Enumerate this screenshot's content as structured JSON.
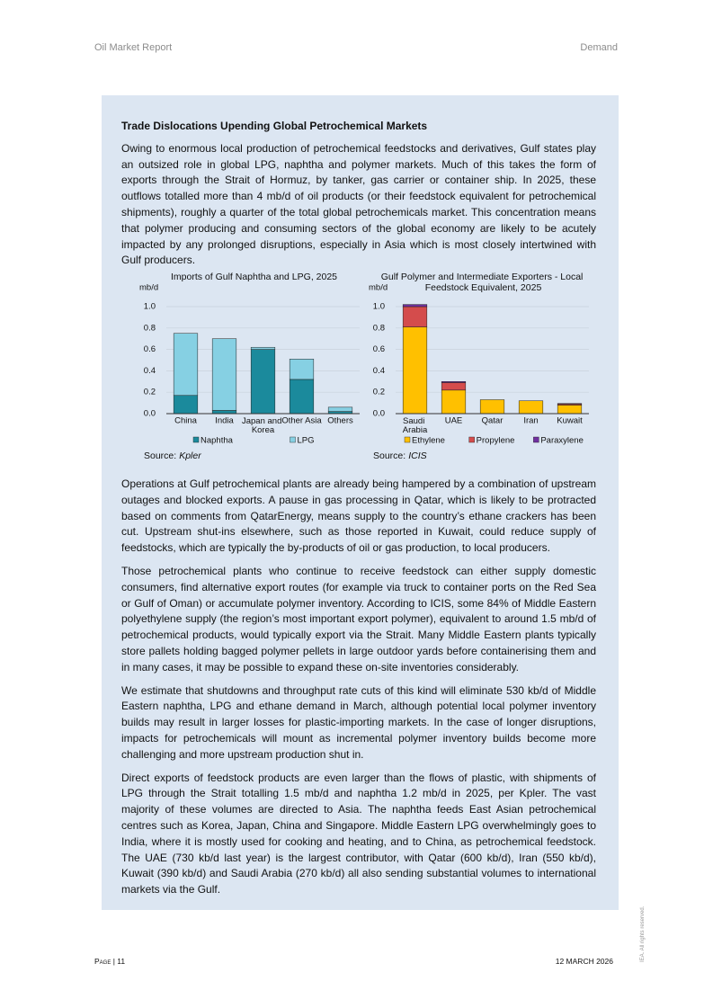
{
  "header": {
    "left": "Oil Market Report",
    "right": "Demand"
  },
  "box": {
    "title": "Trade Dislocations Upending Global Petrochemical Markets",
    "intro": "Owing to enormous local production of petrochemical feedstocks and derivatives, Gulf states play an outsized role in global LPG, naphtha and polymer markets. Much of this takes the form of exports through the Strait of Hormuz, by tanker, gas carrier or container ship. In 2025, these outflows totalled more than 4 mb/d of oil products (or their feedstock equivalent for petrochemical shipments), roughly a quarter of the total global petrochemicals market. This concentration means that polymer producing and consuming sectors of the global economy are likely to be acutely impacted by any prolonged disruptions, especially in Asia which is most closely intertwined with Gulf producers.",
    "paragraphs": [
      "Operations at Gulf petrochemical plants are already being hampered by a combination of upstream outages and blocked exports. A pause in gas processing in Qatar, which is likely to be protracted based on comments from QatarEnergy, means supply to the country’s ethane crackers has been cut. Upstream shut-ins elsewhere, such as those reported in Kuwait, could reduce supply of feedstocks, which are typically the by-products of oil or gas production, to local producers.",
      "Those petrochemical plants who continue to receive feedstock can either supply domestic consumers, find alternative export routes (for example via truck to container ports on the Red Sea or Gulf of Oman) or accumulate polymer inventory. According to ICIS, some 84% of Middle Eastern polyethylene supply (the region’s most important export polymer), equivalent to around 1.5 mb/d of petrochemical products, would typically export via the Strait. Many Middle Eastern plants typically store pallets holding bagged polymer pellets in large outdoor yards before containerising them and in many cases, it may be possible to expand these on-site inventories considerably.",
      "We estimate that shutdowns and throughput rate cuts of this kind will eliminate 530 kb/d of Middle Eastern naphtha, LPG and ethane demand in March, although potential local polymer inventory builds may result in larger losses for plastic-importing markets. In the case of longer disruptions, impacts for petrochemicals will mount as incremental polymer inventory builds become more challenging and more upstream production shut in.",
      "Direct exports of feedstock products are even larger than the flows of plastic, with shipments of LPG through the Strait totalling 1.5 mb/d and naphtha 1.2 mb/d in 2025, per Kpler. The vast majority of these volumes are directed to Asia. The naphtha feeds East Asian petrochemical centres such as Korea, Japan, China and Singapore. Middle Eastern LPG overwhelmingly goes to India, where it is mostly used for cooking and heating, and to China, as petrochemical feedstock. The UAE (730 kb/d last year) is the largest contributor, with Qatar (600 kb/d), Iran (550 kb/d), Kuwait (390 kb/d) and Saudi Arabia (270 kb/d) all also sending substantial volumes to international markets via the Gulf."
    ]
  },
  "chart_data": [
    {
      "type": "bar",
      "stacked": true,
      "title": "Imports of Gulf Naphtha and LPG, 2025",
      "y_label": "mb/d",
      "categories": [
        "China",
        "India",
        "Japan and Korea",
        "Other Asia",
        "Others"
      ],
      "series": [
        {
          "name": "Naphtha",
          "color": "#1b8a9c",
          "values": [
            0.17,
            0.03,
            0.6,
            0.32,
            0.02
          ]
        },
        {
          "name": "LPG",
          "color": "#86d0e3",
          "values": [
            0.58,
            0.67,
            0.02,
            0.19,
            0.04
          ]
        }
      ],
      "ylim": [
        0,
        1
      ],
      "yticks": [
        {
          "value": 0,
          "label": "0.0"
        },
        0.2,
        0.4,
        0.6,
        0.8,
        {
          "value": 1,
          "label": "1.0"
        }
      ],
      "grid": true,
      "legend": "bottom",
      "source_label": "Source:",
      "source": "Kpler"
    },
    {
      "type": "bar",
      "stacked": true,
      "title": "Gulf Polymer and Intermediate Exporters - Local Feedstock Equivalent, 2025",
      "y_label": "mb/d",
      "categories": [
        "Saudi Arabia",
        "UAE",
        "Qatar",
        "Iran",
        "Kuwait"
      ],
      "series": [
        {
          "name": "Ethylene",
          "color": "#ffc000",
          "values": [
            0.81,
            0.22,
            0.13,
            0.12,
            0.08
          ]
        },
        {
          "name": "Propylene",
          "color": "#d44c4c",
          "values": [
            0.19,
            0.07,
            0,
            0,
            0.01
          ]
        },
        {
          "name": "Paraxylene",
          "color": "#7030a0",
          "values": [
            0.02,
            0.01,
            0,
            0,
            0.005
          ]
        }
      ],
      "ylim": [
        0,
        1
      ],
      "yticks": [
        {
          "value": 0,
          "label": "0.0"
        },
        0.2,
        0.4,
        0.6,
        0.8,
        {
          "value": 1,
          "label": "1.0"
        }
      ],
      "grid": true,
      "legend": "bottom",
      "source_label": "Source:",
      "source": "ICIS"
    }
  ],
  "footer": {
    "page": "Page | 11",
    "date": "12 MARCH 2026",
    "rights": "IEA. All rights reserved."
  }
}
